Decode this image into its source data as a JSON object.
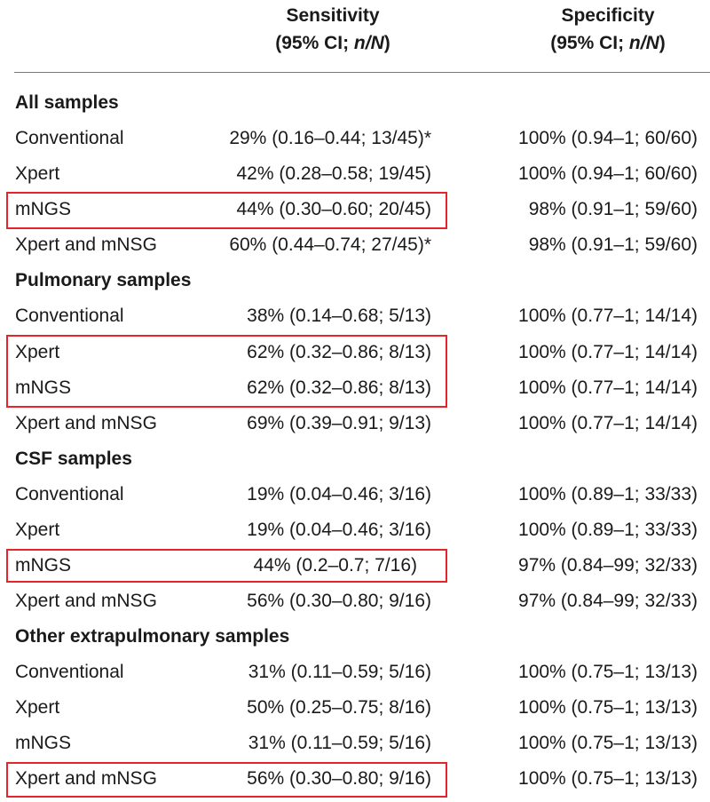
{
  "header": {
    "sensitivity_title": "Sensitivity",
    "sensitivity_sub_a": "(95% CI; ",
    "sensitivity_sub_b": "n/N",
    "sensitivity_sub_c": ")",
    "specificity_title": "Specificity",
    "specificity_sub_a": "(95% CI; ",
    "specificity_sub_b": "n/N",
    "specificity_sub_c": ")"
  },
  "sections": [
    {
      "title": "All samples",
      "rows": [
        {
          "label": "Conventional",
          "sensitivity": "29% (0.16–0.44; 13/45)*",
          "specificity": "100% (0.94–1; 60/60)"
        },
        {
          "label": "Xpert",
          "sensitivity": "42% (0.28–0.58; 19/45)",
          "specificity": "100% (0.94–1; 60/60)"
        },
        {
          "label": "mNGS",
          "sensitivity": "44% (0.30–0.60; 20/45)",
          "specificity": "98% (0.91–1; 59/60)"
        },
        {
          "label": "Xpert and mNSG",
          "sensitivity": "60% (0.44–0.74; 27/45)*",
          "specificity": "98% (0.91–1; 59/60)"
        }
      ]
    },
    {
      "title": "Pulmonary samples",
      "rows": [
        {
          "label": "Conventional",
          "sensitivity": "38% (0.14–0.68; 5/13)",
          "specificity": "100% (0.77–1; 14/14)"
        },
        {
          "label": "Xpert",
          "sensitivity": "62% (0.32–0.86; 8/13)",
          "specificity": "100% (0.77–1; 14/14)"
        },
        {
          "label": "mNGS",
          "sensitivity": "62% (0.32–0.86; 8/13)",
          "specificity": "100% (0.77–1; 14/14)"
        },
        {
          "label": "Xpert and mNSG",
          "sensitivity": "69% (0.39–0.91; 9/13)",
          "specificity": "100% (0.77–1; 14/14)"
        }
      ]
    },
    {
      "title": "CSF samples",
      "rows": [
        {
          "label": "Conventional",
          "sensitivity": "19% (0.04–0.46; 3/16)",
          "specificity": "100% (0.89–1; 33/33)"
        },
        {
          "label": "Xpert",
          "sensitivity": "19% (0.04–0.46; 3/16)",
          "specificity": "100% (0.89–1; 33/33)"
        },
        {
          "label": "mNGS",
          "sensitivity": "44% (0.2–0.7; 7/16)",
          "specificity": "97% (0.84–99; 32/33)"
        },
        {
          "label": "Xpert and mNSG",
          "sensitivity": "56% (0.30–0.80; 9/16)",
          "specificity": "97% (0.84–99; 32/33)"
        }
      ]
    },
    {
      "title": "Other extrapulmonary samples",
      "rows": [
        {
          "label": "Conventional",
          "sensitivity": "31% (0.11–0.59; 5/16)",
          "specificity": "100% (0.75–1; 13/13)"
        },
        {
          "label": "Xpert",
          "sensitivity": "50% (0.25–0.75; 8/16)",
          "specificity": "100% (0.75–1; 13/13)"
        },
        {
          "label": "mNGS",
          "sensitivity": "31% (0.11–0.59; 5/16)",
          "specificity": "100% (0.75–1; 13/13)"
        },
        {
          "label": "Xpert and mNSG",
          "sensitivity": "56% (0.30–0.80; 9/16)",
          "specificity": "100% (0.75–1; 13/13)"
        }
      ]
    }
  ],
  "highlight_color": "#e8242b"
}
